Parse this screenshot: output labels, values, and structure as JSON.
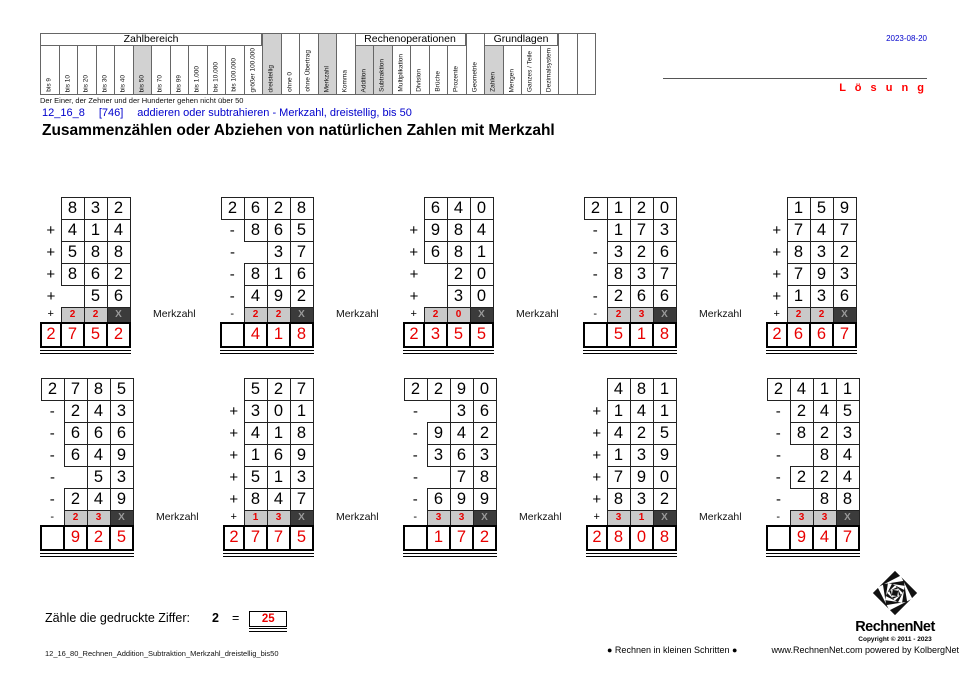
{
  "header": {
    "date": "2023-08-20",
    "solution_label": "L ö s u n g",
    "note": "Der Einer, der Zehner und der Hunderter gehen nicht über 50",
    "subtitle_code": "12_16_8",
    "subtitle_ref": "[746]",
    "subtitle_text": "addieren oder subtrahieren - Merkzahl, dreistellig, bis 50",
    "title": "Zusammenzählen oder Abziehen von natürlichen Zahlen mit Merkzahl"
  },
  "topic_table": {
    "groups": [
      {
        "label": "Zahlbereich",
        "start": 0,
        "count": 12
      },
      {
        "label": "Rechenoperationen",
        "start": 17,
        "count": 6
      },
      {
        "label": "Grundlagen",
        "start": 24,
        "count": 4
      }
    ],
    "columns": [
      {
        "label": "bis 9",
        "highlight": false
      },
      {
        "label": "bis 10",
        "highlight": false
      },
      {
        "label": "bis 20",
        "highlight": false
      },
      {
        "label": "bis 30",
        "highlight": false
      },
      {
        "label": "bis 40",
        "highlight": false
      },
      {
        "label": "bis 50",
        "highlight": true
      },
      {
        "label": "bis 70",
        "highlight": false
      },
      {
        "label": "bis 99",
        "highlight": false
      },
      {
        "label": "bis 1.000",
        "highlight": false
      },
      {
        "label": "bis 10.000",
        "highlight": false
      },
      {
        "label": "bis 100.000",
        "highlight": false
      },
      {
        "label": "größer 100.000",
        "highlight": false
      },
      {
        "label": "dreistellig",
        "highlight": true
      },
      {
        "label": "ohne 0",
        "highlight": false
      },
      {
        "label": "ohne Übertrag",
        "highlight": false
      },
      {
        "label": "Merkzahl",
        "highlight": true
      },
      {
        "label": "Komma",
        "highlight": false
      },
      {
        "label": "Addition",
        "highlight": true
      },
      {
        "label": "Subtraktion",
        "highlight": true
      },
      {
        "label": "Multiplikation",
        "highlight": false
      },
      {
        "label": "Division",
        "highlight": false
      },
      {
        "label": "Brüche",
        "highlight": false
      },
      {
        "label": "Prozente",
        "highlight": false
      },
      {
        "label": "Geometrie",
        "highlight": false
      },
      {
        "label": "Zahlen",
        "highlight": true
      },
      {
        "label": "Mengen",
        "highlight": false
      },
      {
        "label": "Ganzes / Teile",
        "highlight": false
      },
      {
        "label": "Dezimalsystem",
        "highlight": false
      },
      {
        "label": "",
        "highlight": false
      },
      {
        "label": "",
        "highlight": false
      }
    ]
  },
  "problems": {
    "merkzahl_label": "Merkzahl",
    "row1": [
      {
        "top": [
          "",
          "8",
          "3",
          "2"
        ],
        "rows": [
          [
            "+",
            "4",
            "1",
            "4"
          ],
          [
            "+",
            "5",
            "8",
            "8"
          ],
          [
            "+",
            "8",
            "6",
            "2"
          ],
          [
            "+",
            "",
            "5",
            "6"
          ]
        ],
        "merk": [
          "+",
          "2",
          "2",
          "X"
        ],
        "result": [
          "2",
          "7",
          "5",
          "2"
        ]
      },
      {
        "top": [
          "2",
          "6",
          "2",
          "8"
        ],
        "rows": [
          [
            "-",
            "8",
            "6",
            "5"
          ],
          [
            "-",
            "",
            "3",
            "7"
          ],
          [
            "-",
            "8",
            "1",
            "6"
          ],
          [
            "-",
            "4",
            "9",
            "2"
          ]
        ],
        "merk": [
          "-",
          "2",
          "2",
          "X"
        ],
        "result": [
          "",
          "4",
          "1",
          "8"
        ]
      },
      {
        "top": [
          "",
          "6",
          "4",
          "0"
        ],
        "rows": [
          [
            "+",
            "9",
            "8",
            "4"
          ],
          [
            "+",
            "6",
            "8",
            "1"
          ],
          [
            "+",
            "",
            "2",
            "0"
          ],
          [
            "+",
            "",
            "3",
            "0"
          ]
        ],
        "merk": [
          "+",
          "2",
          "0",
          "X"
        ],
        "result": [
          "2",
          "3",
          "5",
          "5"
        ]
      },
      {
        "top": [
          "2",
          "1",
          "2",
          "0"
        ],
        "rows": [
          [
            "-",
            "1",
            "7",
            "3"
          ],
          [
            "-",
            "3",
            "2",
            "6"
          ],
          [
            "-",
            "8",
            "3",
            "7"
          ],
          [
            "-",
            "2",
            "6",
            "6"
          ]
        ],
        "merk": [
          "-",
          "2",
          "3",
          "X"
        ],
        "result": [
          "",
          "5",
          "1",
          "8"
        ]
      },
      {
        "top": [
          "",
          "1",
          "5",
          "9"
        ],
        "rows": [
          [
            "+",
            "7",
            "4",
            "7"
          ],
          [
            "+",
            "8",
            "3",
            "2"
          ],
          [
            "+",
            "7",
            "9",
            "3"
          ],
          [
            "+",
            "1",
            "3",
            "6"
          ]
        ],
        "merk": [
          "+",
          "2",
          "2",
          "X"
        ],
        "result": [
          "2",
          "6",
          "6",
          "7"
        ]
      }
    ],
    "row2": [
      {
        "top": [
          "2",
          "7",
          "8",
          "5"
        ],
        "rows": [
          [
            "-",
            "2",
            "4",
            "3"
          ],
          [
            "-",
            "6",
            "6",
            "6"
          ],
          [
            "-",
            "6",
            "4",
            "9"
          ],
          [
            "-",
            "",
            "5",
            "3"
          ],
          [
            "-",
            "2",
            "4",
            "9"
          ]
        ],
        "merk": [
          "-",
          "2",
          "3",
          "X"
        ],
        "result": [
          "",
          "9",
          "2",
          "5"
        ]
      },
      {
        "top": [
          "",
          "5",
          "2",
          "7"
        ],
        "rows": [
          [
            "+",
            "3",
            "0",
            "1"
          ],
          [
            "+",
            "4",
            "1",
            "8"
          ],
          [
            "+",
            "1",
            "6",
            "9"
          ],
          [
            "+",
            "5",
            "1",
            "3"
          ],
          [
            "+",
            "8",
            "4",
            "7"
          ]
        ],
        "merk": [
          "+",
          "1",
          "3",
          "X"
        ],
        "result": [
          "2",
          "7",
          "7",
          "5"
        ]
      },
      {
        "top": [
          "2",
          "2",
          "9",
          "0"
        ],
        "rows": [
          [
            "-",
            "",
            "3",
            "6"
          ],
          [
            "-",
            "9",
            "4",
            "2"
          ],
          [
            "-",
            "3",
            "6",
            "3"
          ],
          [
            "-",
            "",
            "7",
            "8"
          ],
          [
            "-",
            "6",
            "9",
            "9"
          ]
        ],
        "merk": [
          "-",
          "3",
          "3",
          "X"
        ],
        "result": [
          "",
          "1",
          "7",
          "2"
        ]
      },
      {
        "top": [
          "",
          "4",
          "8",
          "1"
        ],
        "rows": [
          [
            "+",
            "1",
            "4",
            "1"
          ],
          [
            "+",
            "4",
            "2",
            "5"
          ],
          [
            "+",
            "1",
            "3",
            "9"
          ],
          [
            "+",
            "7",
            "9",
            "0"
          ],
          [
            "+",
            "8",
            "3",
            "2"
          ]
        ],
        "merk": [
          "+",
          "3",
          "1",
          "X"
        ],
        "result": [
          "2",
          "8",
          "0",
          "8"
        ]
      },
      {
        "top": [
          "2",
          "4",
          "1",
          "1"
        ],
        "rows": [
          [
            "-",
            "2",
            "4",
            "5"
          ],
          [
            "-",
            "8",
            "2",
            "3"
          ],
          [
            "-",
            "",
            "8",
            "4"
          ],
          [
            "-",
            "2",
            "2",
            "4"
          ],
          [
            "-",
            "",
            "8",
            "8"
          ]
        ],
        "merk": [
          "-",
          "3",
          "3",
          "X"
        ],
        "result": [
          "",
          "9",
          "4",
          "7"
        ]
      }
    ]
  },
  "task": {
    "prompt": "Zähle die gedruckte Ziffer:",
    "digit": "2",
    "equals_sign": "=",
    "answer": "25"
  },
  "footer": {
    "worksheet_id": "12_16_80_Rechnen_Addition_Subtraktion_Merkzahl_dreistellig_bis50",
    "slogan": "● Rechnen in kleinen Schritten ●",
    "website": "www.RechnenNet.com powered by KolbergNet",
    "logo_name": "RechnenNet",
    "copyright": "Copyright © 2011 - 2023"
  },
  "colors": {
    "accent_blue": "#0000cc",
    "solution_red": "#ff0000",
    "highlight_gray": "#d2d2d2"
  }
}
